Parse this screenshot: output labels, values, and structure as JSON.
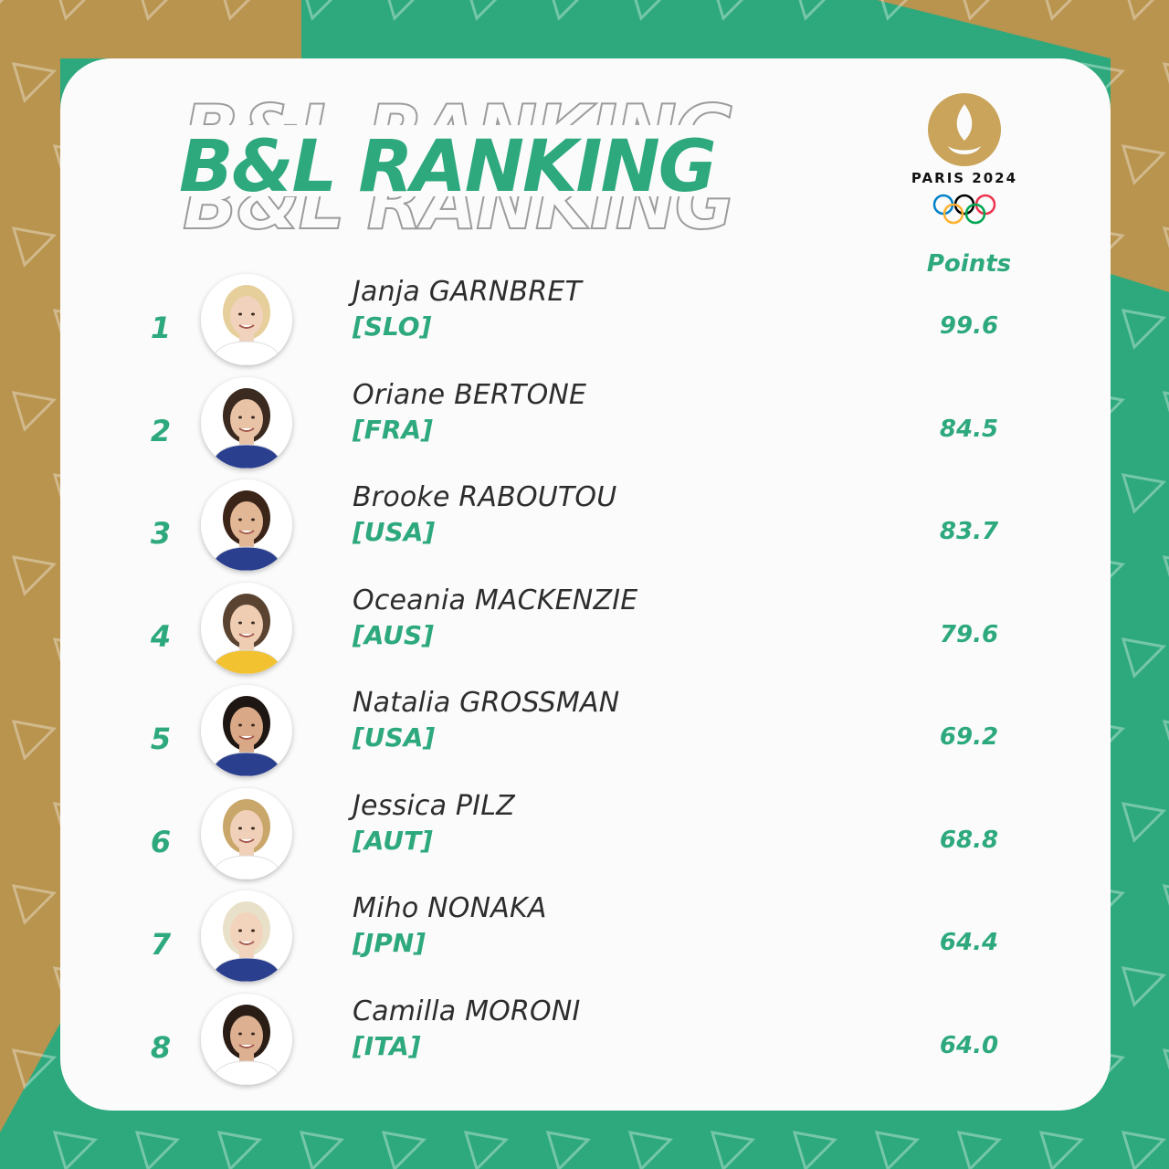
{
  "title": "B&L RANKING",
  "logo": {
    "text": "PARIS 2024"
  },
  "points_header": "Points",
  "athletes": [
    {
      "rank": "1",
      "name": "Janja GARNBRET",
      "country": "[SLO]",
      "points": "99.6"
    },
    {
      "rank": "2",
      "name": "Oriane BERTONE",
      "country": "[FRA]",
      "points": "84.5"
    },
    {
      "rank": "3",
      "name": "Brooke RABOUTOU",
      "country": "[USA]",
      "points": "83.7"
    },
    {
      "rank": "4",
      "name": "Oceania MACKENZIE",
      "country": "[AUS]",
      "points": "79.6"
    },
    {
      "rank": "5",
      "name": "Natalia GROSSMAN",
      "country": "[USA]",
      "points": "69.2"
    },
    {
      "rank": "6",
      "name": "Jessica PILZ",
      "country": "[AUT]",
      "points": "68.8"
    },
    {
      "rank": "7",
      "name": "Miho NONAKA",
      "country": "[JPN]",
      "points": "64.4"
    },
    {
      "rank": "8",
      "name": "Camilla MORONI",
      "country": "[ITA]",
      "points": "64.0"
    }
  ],
  "colors": {
    "gold": "#b8944f",
    "green": "#2da97d",
    "card": "#fbfbfb"
  }
}
